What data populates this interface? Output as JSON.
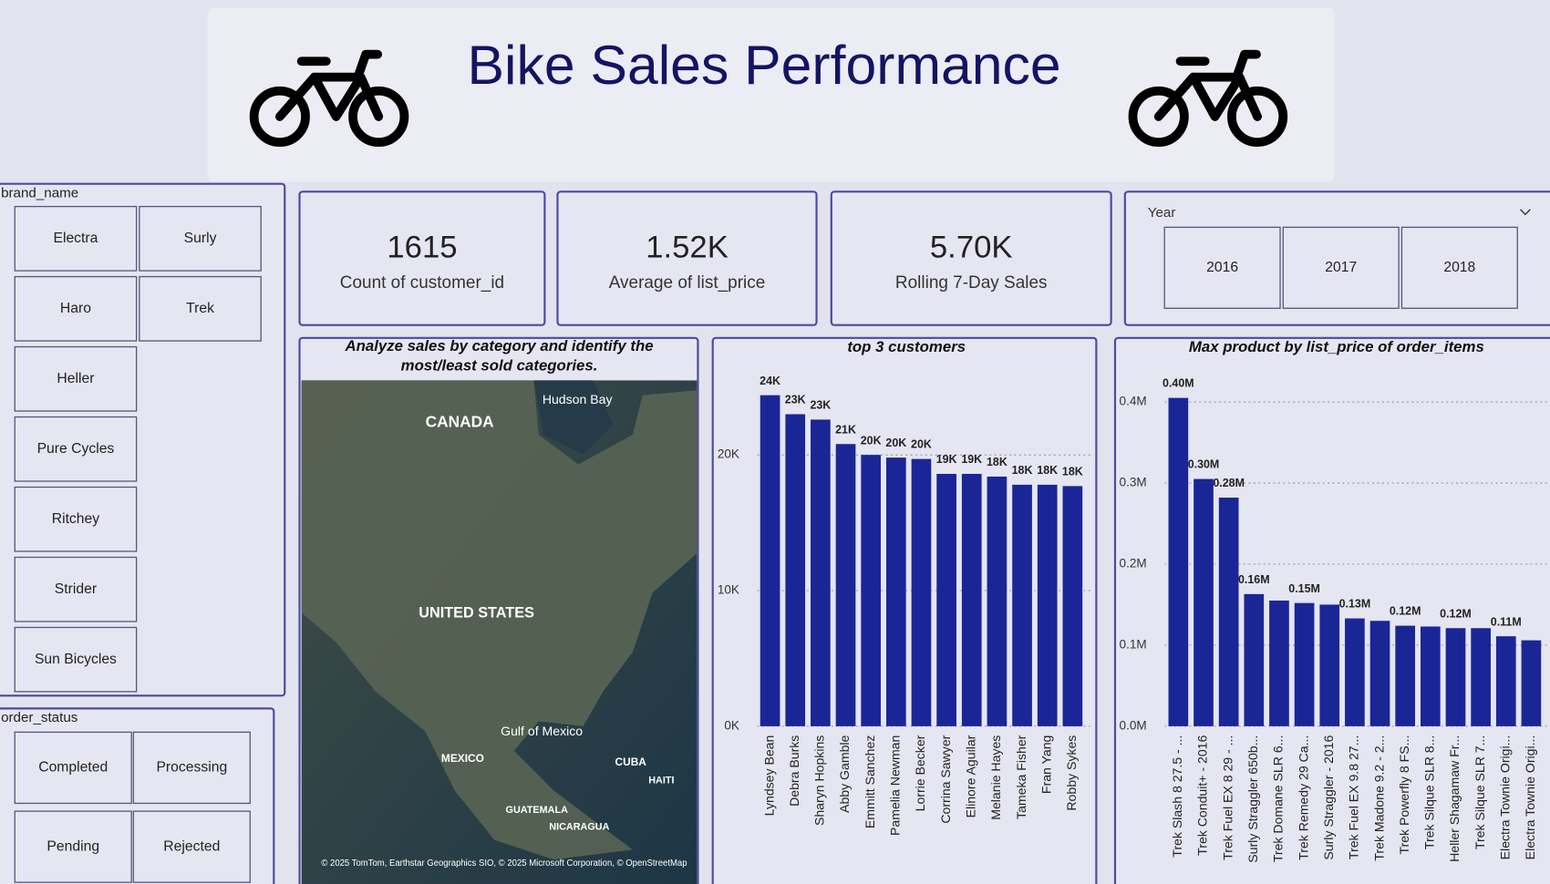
{
  "header": {
    "title": "Bike Sales Performance"
  },
  "brand_slicer": {
    "title": "brand_name",
    "items": [
      "Electra",
      "Surly",
      "Haro",
      "Trek",
      "Heller",
      "Pure Cycles",
      "Ritchey",
      "Strider",
      "Sun Bicycles"
    ]
  },
  "status_slicer": {
    "title": "order_status",
    "items": [
      "Completed",
      "Processing",
      "Pending",
      "Rejected"
    ]
  },
  "kpis": [
    {
      "value": "1615",
      "label": "Count of customer_id"
    },
    {
      "value": "1.52K",
      "label": "Average of list_price"
    },
    {
      "value": "5.70K",
      "label": "Rolling 7-Day Sales"
    }
  ],
  "year_slicer": {
    "title": "Year",
    "items": [
      "2016",
      "2017",
      "2018"
    ]
  },
  "map": {
    "title": "Analyze sales by category and identify the most/least sold categories.",
    "labels": [
      "Hudson Bay",
      "CANADA",
      "UNITED STATES",
      "Gulf of Mexico",
      "MEXICO",
      "CUBA",
      "HAITI",
      "GUATEMALA",
      "NICARAGUA"
    ],
    "attribution": "© 2025 TomTom, Earthstar Geographics SIO, © 2025 Microsoft Corporation, © OpenStreetMap"
  },
  "chart_data": [
    {
      "type": "bar",
      "title": "top 3 customers",
      "categories": [
        "Lyndsey Bean",
        "Debra Burks",
        "Sharyn Hopkins",
        "Abby Gamble",
        "Emmitt Sanchez",
        "Pamelia Newman",
        "Lorrie Becker",
        "Corrina Sawyer",
        "Elinore Aguilar",
        "Melanie Hayes",
        "Tameka Fisher",
        "Fran Yang",
        "Robby Sykes"
      ],
      "values": [
        24400,
        23000,
        22600,
        20800,
        20000,
        19800,
        19700,
        18600,
        18600,
        18400,
        17800,
        17800,
        17700
      ],
      "value_labels": [
        "24K",
        "23K",
        "23K",
        "21K",
        "20K",
        "20K",
        "20K",
        "19K",
        "19K",
        "18K",
        "18K",
        "18K",
        "18K"
      ],
      "color": "#1a2696",
      "ylim": [
        0,
        26000
      ],
      "yticks": [
        {
          "value": 0,
          "label": "0K"
        },
        {
          "value": 10000,
          "label": "10K"
        },
        {
          "value": 20000,
          "label": "20K"
        }
      ],
      "grid": true
    },
    {
      "type": "bar",
      "title": "Max product by list_price of order_items",
      "categories": [
        "Trek Slash 8 27.5 - ...",
        "Trek Conduit+ - 2016",
        "Trek Fuel EX 8 29 - ...",
        "Surly Straggler 650b...",
        "Trek Domane SLR 6...",
        "Trek Remedy 29 Ca...",
        "Surly Straggler - 2016",
        "Trek Fuel EX 9.8 27...",
        "Trek Madone 9.2 - 2...",
        "Trek Powerfly 8 FS...",
        "Trek Silque SLR 8...",
        "Heller Shagamaw Fr...",
        "Trek Silque SLR 7...",
        "Electra Townie Origi...",
        "Electra Townie Origi..."
      ],
      "values": [
        405000,
        305000,
        282000,
        163000,
        155000,
        152000,
        150000,
        133000,
        130000,
        124000,
        123000,
        121000,
        121000,
        111000,
        106000
      ],
      "value_labels": [
        "0.40M",
        "0.30M",
        "0.28M",
        "0.16M",
        null,
        "0.15M",
        null,
        "0.13M",
        null,
        "0.12M",
        null,
        "0.12M",
        null,
        "0.11M",
        null
      ],
      "color": "#1a2696",
      "ylim": [
        0,
        440000
      ],
      "yticks": [
        {
          "value": 0,
          "label": "0.0M"
        },
        {
          "value": 100000,
          "label": "0.1M"
        },
        {
          "value": 200000,
          "label": "0.2M"
        },
        {
          "value": 300000,
          "label": "0.3M"
        },
        {
          "value": 400000,
          "label": "0.4M"
        }
      ],
      "grid": true
    }
  ]
}
